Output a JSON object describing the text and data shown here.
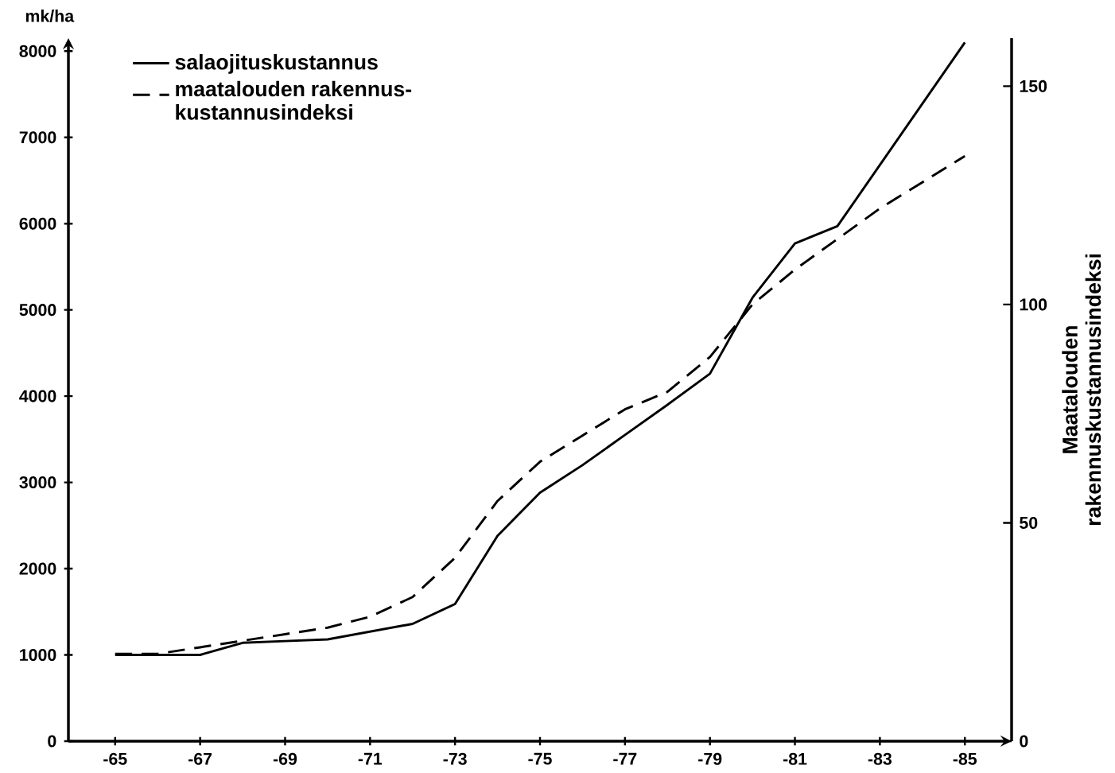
{
  "chart_data": {
    "type": "line",
    "ylabel": "mk/ha",
    "y2label": "Maatalouden rakennuskustannusindeksi",
    "legend": "top left",
    "categories": [
      "-65",
      null,
      "-67",
      null,
      "-69",
      null,
      "-71",
      null,
      "-73",
      null,
      "-75",
      null,
      "-77",
      null,
      "-79",
      null,
      "-81",
      null,
      "-83",
      null,
      "-85"
    ],
    "ylim": [
      0,
      8150
    ],
    "yticks": [
      0,
      1000,
      2000,
      3000,
      4000,
      5000,
      6000,
      7000,
      8000
    ],
    "y2lim": [
      0,
      161
    ],
    "y2ticks": [
      0,
      50,
      100,
      150
    ],
    "series": [
      {
        "name": "salaojituskustannus",
        "color": "#000000",
        "line_style": "solid",
        "values": [
          1000,
          1000,
          1000,
          1140,
          1160,
          1180,
          1270,
          1360,
          1590,
          2380,
          2880,
          3200,
          3550,
          3900,
          4260,
          5140,
          5770,
          5970,
          6680,
          7390,
          8100
        ]
      },
      {
        "name": "maatalouden rakennus-kustannusindeksi",
        "color": "#000000",
        "line_style": "dashed",
        "axis": "y2",
        "values": [
          20,
          20,
          21.5,
          23,
          24.5,
          26,
          28.5,
          33,
          42,
          55,
          64,
          70,
          76,
          80,
          88,
          100,
          108,
          115,
          122,
          128,
          134
        ]
      }
    ]
  }
}
